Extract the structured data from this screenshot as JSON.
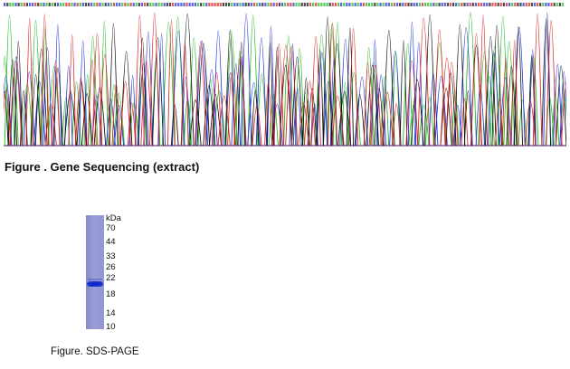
{
  "sequencing": {
    "caption": "Figure . Gene Sequencing (extract)",
    "trace_colors": {
      "A": "#22bb22",
      "C": "#2233dd",
      "G": "#111111",
      "T": "#dd2222"
    }
  },
  "sds_page": {
    "caption": "Figure. SDS-PAGE",
    "unit_label": "kDa",
    "markers": [
      "70",
      "44",
      "33",
      "26",
      "22",
      "18",
      "14",
      "10"
    ]
  }
}
